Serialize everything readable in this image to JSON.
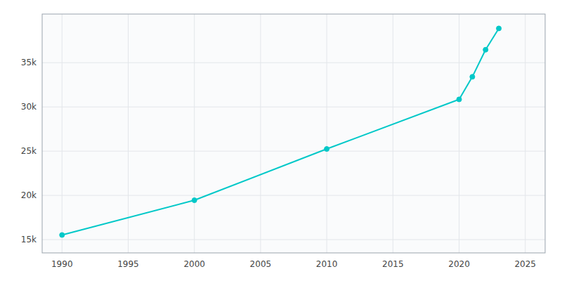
{
  "chart_data": {
    "type": "line",
    "x": [
      1990,
      2000,
      2010,
      2020,
      2021,
      2022,
      2023
    ],
    "values": [
      15527,
      19452,
      25250,
      30854,
      33407,
      36467,
      38877
    ],
    "color": "#00C8C8",
    "marker": "circle",
    "xlim": [
      1988.5,
      2026.5
    ],
    "ylim": [
      13500,
      40500
    ],
    "xticks": [
      1990,
      1995,
      2000,
      2005,
      2010,
      2015,
      2020,
      2025
    ],
    "yticks": [
      {
        "value": 15000,
        "label": "15k"
      },
      {
        "value": 20000,
        "label": "20k"
      },
      {
        "value": 25000,
        "label": "25k"
      },
      {
        "value": 30000,
        "label": "30k"
      },
      {
        "value": 35000,
        "label": "35k"
      }
    ],
    "grid": true
  }
}
